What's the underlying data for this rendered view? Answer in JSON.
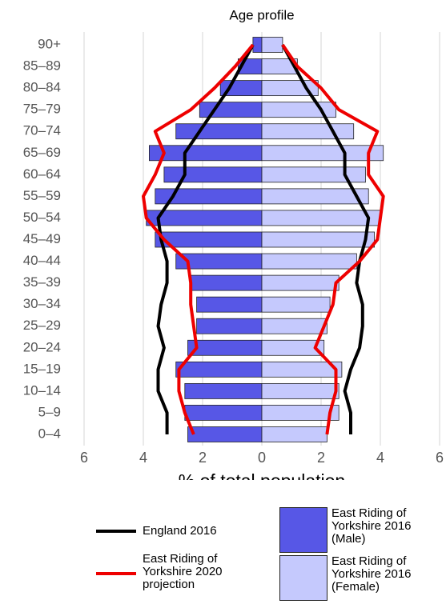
{
  "chart_data": {
    "type": "pyramid",
    "title": "Age profile",
    "x_label": "% of total population",
    "categories": [
      "0–4",
      "5–9",
      "10–14",
      "15–19",
      "20–24",
      "25–29",
      "30–34",
      "35–39",
      "40–44",
      "45–49",
      "50–54",
      "55–59",
      "60–64",
      "65–69",
      "70–74",
      "75–79",
      "80–84",
      "85–89",
      "90+"
    ],
    "xlim": [
      -6,
      6
    ],
    "xticks": [
      {
        "value": -6,
        "label": "6"
      },
      {
        "value": -4,
        "label": "4"
      },
      {
        "value": -2,
        "label": "2"
      },
      0,
      2,
      4,
      6
    ],
    "grid": true,
    "series": [
      {
        "name": "England 2016",
        "type": "line",
        "color": "#000000",
        "male": [
          -3.2,
          -3.2,
          -3.5,
          -3.5,
          -3.3,
          -3.5,
          -3.4,
          -3.2,
          -3.2,
          -3.4,
          -3.5,
          -3.0,
          -2.6,
          -2.6,
          -2.1,
          -1.6,
          -1.1,
          -0.7,
          -0.3
        ],
        "female": [
          3.0,
          3.0,
          2.8,
          3.0,
          3.3,
          3.4,
          3.4,
          3.2,
          3.3,
          3.5,
          3.6,
          3.2,
          2.8,
          2.8,
          2.4,
          2.0,
          1.5,
          1.1,
          0.7
        ]
      },
      {
        "name": "East Riding of Yorkshire 2020 projection",
        "type": "line",
        "color": "#ee0000",
        "male": [
          -2.3,
          -2.6,
          -2.8,
          -2.8,
          -2.2,
          -2.3,
          -2.4,
          -2.4,
          -2.5,
          -3.3,
          -3.9,
          -4.0,
          -3.6,
          -3.3,
          -3.6,
          -2.4,
          -1.6,
          -0.9,
          -0.3
        ],
        "female": [
          2.2,
          2.3,
          2.5,
          2.5,
          1.8,
          2.1,
          2.4,
          2.5,
          3.3,
          3.9,
          4.0,
          4.1,
          3.6,
          3.6,
          3.9,
          2.6,
          2.0,
          1.2,
          0.7
        ]
      },
      {
        "name": "East Riding of Yorkshire 2016 (Male)",
        "type": "bar",
        "color": "#5757e6",
        "values": [
          -2.5,
          -2.6,
          -2.6,
          -2.9,
          -2.5,
          -2.2,
          -2.2,
          -2.4,
          -2.9,
          -3.6,
          -3.9,
          -3.6,
          -3.3,
          -3.8,
          -2.9,
          -2.1,
          -1.4,
          -0.8,
          -0.3
        ]
      },
      {
        "name": "East Riding of Yorkshire 2016 (Female)",
        "type": "bar",
        "color": "#c5c9fd",
        "values": [
          2.2,
          2.6,
          2.6,
          2.7,
          2.1,
          2.2,
          2.3,
          2.6,
          3.2,
          3.8,
          4.0,
          3.6,
          3.5,
          4.1,
          3.1,
          2.5,
          1.9,
          1.2,
          0.7
        ]
      }
    ]
  }
}
